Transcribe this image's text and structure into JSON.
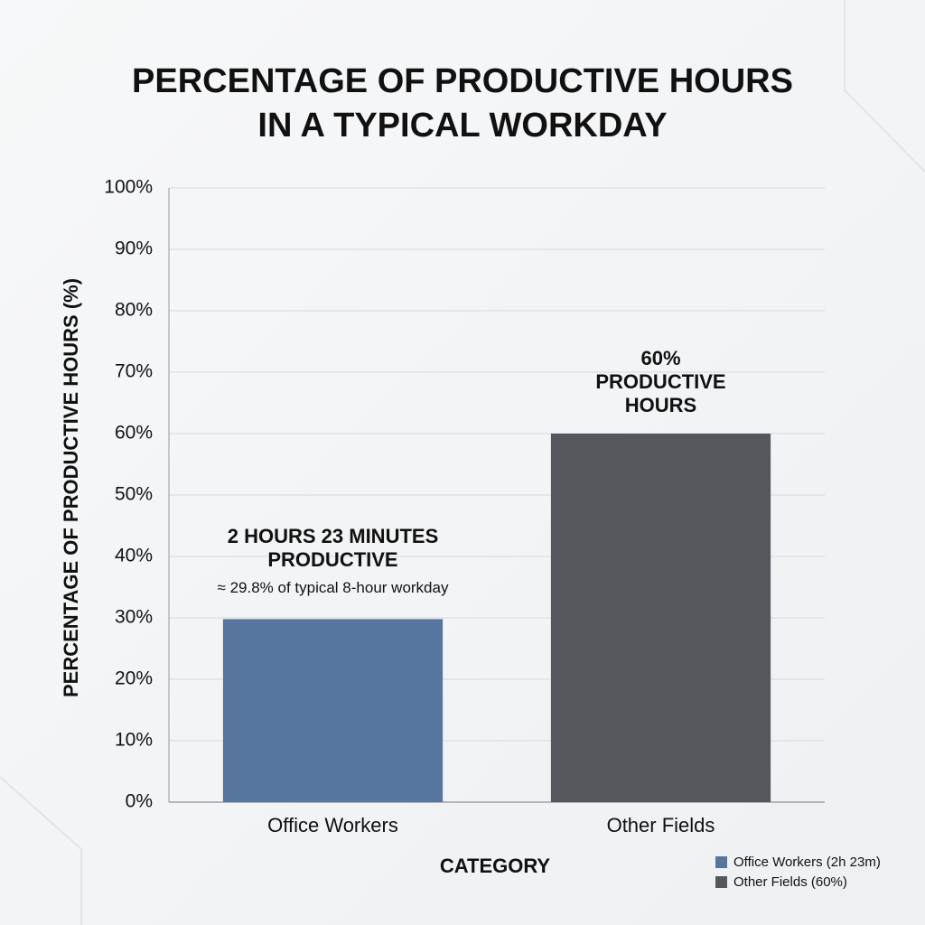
{
  "chart_data": {
    "type": "bar",
    "title": [
      "PERCENTAGE OF PRODUCTIVE HOURS",
      "IN A TYPICAL WORKDAY"
    ],
    "x_label": "CATEGORY",
    "y_label": "PERCENTAGE OF PRODUCTIVE HOURS (%)",
    "categories": [
      "Office Workers",
      "Other Fields"
    ],
    "series": [
      {
        "name": "Office Workers (2h 23m)",
        "color": "#56769f",
        "values": [
          29.8,
          null
        ]
      },
      {
        "name": "Other Fields (60%)",
        "color": "#56575d",
        "values": [
          null,
          60
        ]
      }
    ],
    "annotations": [
      {
        "lines": [
          "2 HOURS 23 MINUTES",
          "PRODUCTIVE"
        ],
        "note": "≈ 29.8% of typical 8-hour workday"
      },
      {
        "lines": [
          "60%",
          "PRODUCTIVE",
          "HOURS"
        ]
      }
    ],
    "ylim": [
      0,
      100
    ],
    "yticks": [
      {
        "value": 0,
        "label": "0%"
      },
      {
        "value": 10,
        "label": "10%"
      },
      {
        "value": 20,
        "label": "20%"
      },
      {
        "value": 30,
        "label": "30%"
      },
      {
        "value": 40,
        "label": "40%"
      },
      {
        "value": 50,
        "label": "50%"
      },
      {
        "value": 60,
        "label": "60%"
      },
      {
        "value": 70,
        "label": "70%"
      },
      {
        "value": 80,
        "label": "80%"
      },
      {
        "value": 90,
        "label": "90%"
      },
      {
        "value": 100,
        "label": "100%"
      }
    ],
    "grid": true,
    "legend": "bottom-right"
  }
}
